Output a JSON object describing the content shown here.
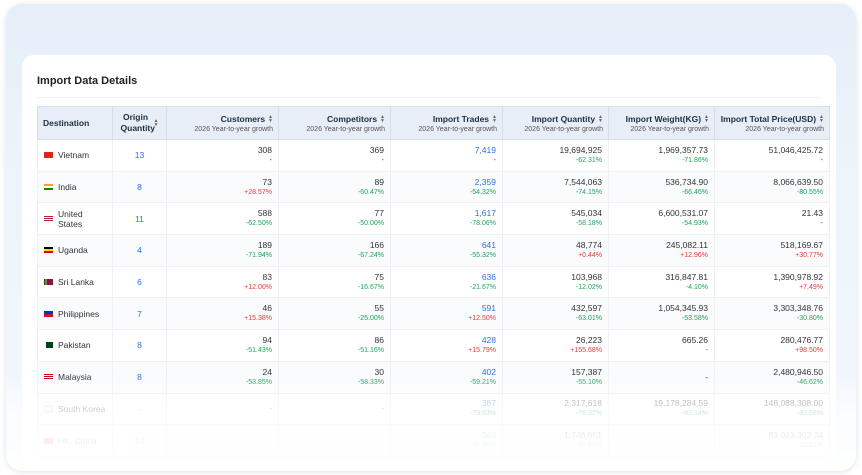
{
  "title": "Import Data Details",
  "columns": {
    "destination": "Destination",
    "origin_quantity": "Origin Quantity",
    "customers": "Customers",
    "competitors": "Competitors",
    "import_trades": "Import Trades",
    "import_quantity": "Import Quantity",
    "import_weight": "Import Weight(KG)",
    "import_total_price": "Import Total Price(USD)",
    "subtitle": "2026 Year-to-year growth"
  },
  "rows": [
    {
      "flag": "vietnam-flag-icon",
      "destination": "Vietnam",
      "origin": "13",
      "customers": "308",
      "customers_chg": "-",
      "competitors": "369",
      "competitors_chg": "-",
      "trades": "7,419",
      "trades_chg": "-",
      "quantity": "19,694,925",
      "quantity_chg": "-62.31%",
      "weight": "1,969,357.73",
      "weight_chg": "-71.86%",
      "price": "51,046,425.72",
      "price_chg": "-"
    },
    {
      "flag": "india-flag-icon",
      "destination": "India",
      "origin": "8",
      "customers": "73",
      "customers_chg": "+28.57%",
      "competitors": "89",
      "competitors_chg": "-60.47%",
      "trades": "2,359",
      "trades_chg": "-54.32%",
      "quantity": "7,544,063",
      "quantity_chg": "-74.15%",
      "weight": "536,734.90",
      "weight_chg": "-66.46%",
      "price": "8,066,639.50",
      "price_chg": "-80.55%"
    },
    {
      "flag": "united-states-flag-icon",
      "destination": "United States",
      "origin": "11",
      "customers": "588",
      "customers_chg": "-62.50%",
      "competitors": "77",
      "competitors_chg": "-50.00%",
      "trades": "1,617",
      "trades_chg": "-78.06%",
      "quantity": "545,034",
      "quantity_chg": "-58.18%",
      "weight": "6,600,531.07",
      "weight_chg": "-54.93%",
      "price": "21.43",
      "price_chg": "-"
    },
    {
      "flag": "uganda-flag-icon",
      "destination": "Uganda",
      "origin": "4",
      "customers": "189",
      "customers_chg": "-71.94%",
      "competitors": "166",
      "competitors_chg": "-67.24%",
      "trades": "641",
      "trades_chg": "-55.32%",
      "quantity": "48,774",
      "quantity_chg": "+0.44%",
      "weight": "245,082.11",
      "weight_chg": "+12.96%",
      "price": "518,169.67",
      "price_chg": "+30.77%"
    },
    {
      "flag": "sri-lanka-flag-icon",
      "destination": "Sri Lanka",
      "origin": "6",
      "customers": "83",
      "customers_chg": "+12.00%",
      "competitors": "75",
      "competitors_chg": "-16.67%",
      "trades": "636",
      "trades_chg": "-21.67%",
      "quantity": "103,968",
      "quantity_chg": "-12.02%",
      "weight": "316,847.81",
      "weight_chg": "-4.10%",
      "price": "1,390,978.92",
      "price_chg": "+7.49%"
    },
    {
      "flag": "philippines-flag-icon",
      "destination": "Philippines",
      "origin": "7",
      "customers": "46",
      "customers_chg": "+15.38%",
      "competitors": "55",
      "competitors_chg": "-25.00%",
      "trades": "591",
      "trades_chg": "+12.50%",
      "quantity": "432,597",
      "quantity_chg": "-63.01%",
      "weight": "1,054,345.93",
      "weight_chg": "-53.58%",
      "price": "3,303,348.76",
      "price_chg": "-30.80%"
    },
    {
      "flag": "pakistan-flag-icon",
      "destination": "Pakistan",
      "origin": "8",
      "customers": "94",
      "customers_chg": "-51.43%",
      "competitors": "86",
      "competitors_chg": "-51.16%",
      "trades": "428",
      "trades_chg": "+15.79%",
      "quantity": "26,223",
      "quantity_chg": "+155.68%",
      "weight": "665.26",
      "weight_chg": "-",
      "price": "280,476.77",
      "price_chg": "+98.50%"
    },
    {
      "flag": "malaysia-flag-icon",
      "destination": "Malaysia",
      "origin": "8",
      "customers": "24",
      "customers_chg": "-53.85%",
      "competitors": "30",
      "competitors_chg": "-58.33%",
      "trades": "402",
      "trades_chg": "-59.21%",
      "quantity": "157,387",
      "quantity_chg": "-55.10%",
      "weight": "-",
      "weight_chg": "",
      "price": "2,480,946.50",
      "price_chg": "-46.62%"
    },
    {
      "flag": "south-korea-flag-icon",
      "destination": "South Korea",
      "origin": "-",
      "customers": "-",
      "customers_chg": "",
      "competitors": "-",
      "competitors_chg": "",
      "trades": "387",
      "trades_chg": "-79.63%",
      "quantity": "2,317,618",
      "quantity_chg": "-76.32%",
      "weight": "19,178,284.59",
      "weight_chg": "-83.14%",
      "price": "148,088,308.00",
      "price_chg": "-82.68%"
    },
    {
      "flag": "hong-kong-flag-icon",
      "destination": "HK, China",
      "origin": "14",
      "customers": "",
      "customers_chg": "",
      "competitors": "",
      "competitors_chg": "",
      "trades": "340",
      "trades_chg": "-36.99%",
      "quantity": "1,746,051",
      "quantity_chg": "-37.85%",
      "weight": "",
      "weight_chg": "",
      "price": "83,023,302.34",
      "price_chg": "-30.31%"
    }
  ],
  "colors": {
    "header_bg": "#e8eef8",
    "link_blue": "#2f6fe0",
    "increase_red": "#e23b3b",
    "decrease_green": "#1ea45b"
  }
}
